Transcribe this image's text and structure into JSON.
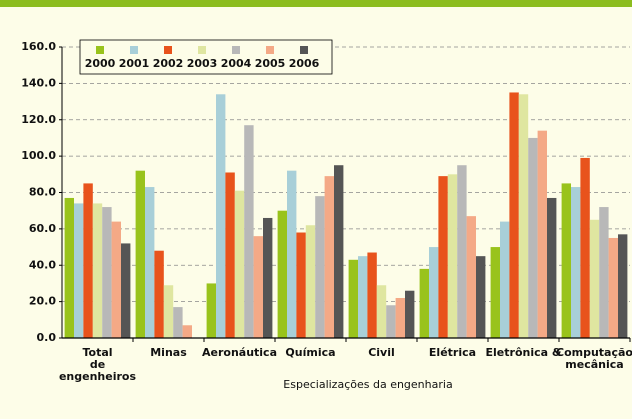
{
  "chart_data": {
    "type": "bar",
    "xlabel": "Especializações da engenharia",
    "categories": [
      "Total\nde\nengenheiros",
      "Minas",
      "Aeronáutica",
      "Química",
      "Civil",
      "Elétrica",
      "Eletrônica &",
      "Computação\nmecânica"
    ],
    "series": [
      {
        "name": "2000",
        "color": "#99c31c",
        "values": [
          77,
          92,
          30,
          70,
          43,
          38,
          50,
          85
        ]
      },
      {
        "name": "2001",
        "color": "#a8cfd8",
        "values": [
          74,
          83,
          134,
          92,
          45,
          50,
          64,
          83
        ]
      },
      {
        "name": "2002",
        "color": "#e8531c",
        "values": [
          85,
          48,
          91,
          58,
          47,
          89,
          135,
          99
        ]
      },
      {
        "name": "2003",
        "color": "#dfe6a0",
        "values": [
          74,
          29,
          81,
          62,
          29,
          90,
          134,
          65
        ]
      },
      {
        "name": "2004",
        "color": "#b8b8b8",
        "values": [
          72,
          17,
          117,
          78,
          18,
          95,
          110,
          72
        ]
      },
      {
        "name": "2005",
        "color": "#f4a986",
        "values": [
          64,
          7,
          56,
          89,
          22,
          67,
          114,
          55
        ]
      },
      {
        "name": "2006",
        "color": "#555555",
        "values": [
          52,
          null,
          66,
          95,
          26,
          45,
          77,
          57
        ]
      }
    ],
    "ylim": [
      0,
      160
    ],
    "yticks": [
      {
        "value": 0,
        "label": "0.0"
      },
      {
        "value": 20,
        "label": "20.0"
      },
      {
        "value": 40,
        "label": "40.0"
      },
      {
        "value": 60,
        "label": "60.0"
      },
      {
        "value": 80,
        "label": "80.0"
      },
      {
        "value": 100,
        "label": "100.0"
      },
      {
        "value": 120,
        "label": "120.0"
      },
      {
        "value": 140,
        "label": "140.0"
      },
      {
        "value": 160,
        "label": "160.0"
      }
    ],
    "grid": true,
    "legend": "top-left"
  }
}
